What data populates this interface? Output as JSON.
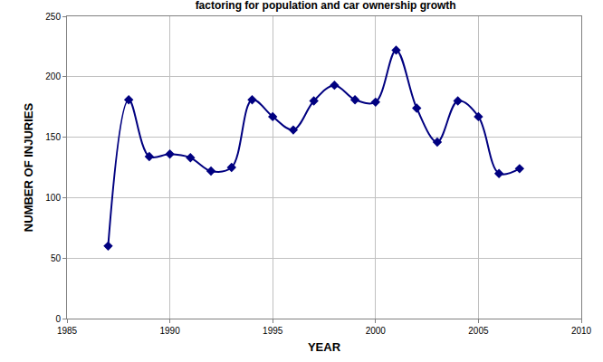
{
  "chart_data": {
    "type": "line",
    "title": "factoring for population and car ownership growth",
    "x_label": "YEAR",
    "y_label": "NUMBER OF INJURIES",
    "x": [
      1987,
      1988,
      1989,
      1990,
      1991,
      1992,
      1993,
      1994,
      1995,
      1996,
      1997,
      1998,
      1999,
      2000,
      2001,
      2002,
      2003,
      2004,
      2005,
      2006,
      2007
    ],
    "values": [
      60,
      181,
      134,
      136,
      133,
      122,
      125,
      181,
      167,
      156,
      180,
      193,
      181,
      179,
      222,
      174,
      146,
      180,
      167,
      120,
      124
    ],
    "color": "#000080",
    "marker": "diamond",
    "line_style": "smooth",
    "xlim": [
      1985,
      2010
    ],
    "xticks": [
      1985,
      1990,
      1995,
      2000,
      2005,
      2010
    ],
    "ylim": [
      0,
      250
    ],
    "yticks": [
      0,
      50,
      100,
      150,
      200,
      250
    ],
    "grid": true
  }
}
